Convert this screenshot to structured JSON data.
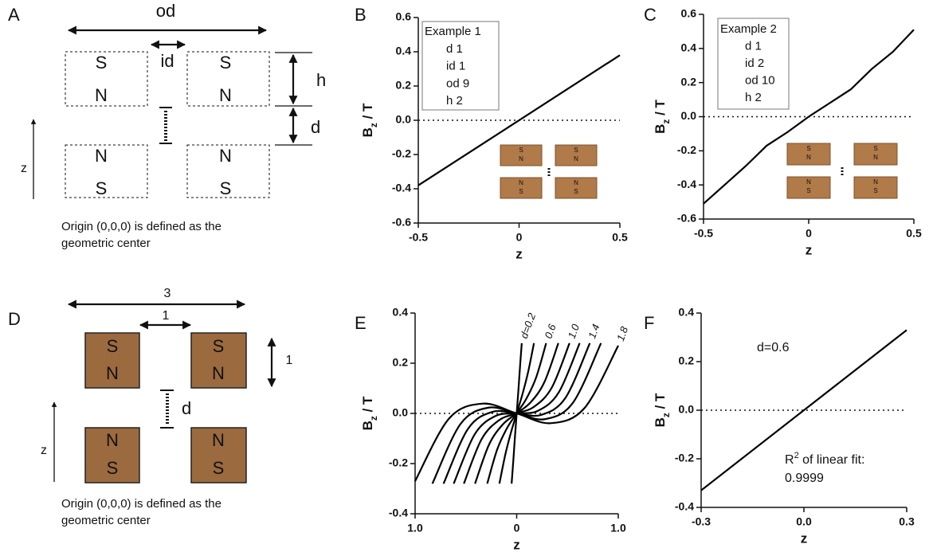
{
  "panel_labels": [
    "A",
    "B",
    "C",
    "D",
    "E",
    "F"
  ],
  "diagram_a": {
    "od": "od",
    "id": "id",
    "h": "h",
    "d": "d",
    "z": "z",
    "magnets": [
      [
        "S",
        "N"
      ],
      [
        "S",
        "N"
      ],
      [
        "N",
        "S"
      ],
      [
        "N",
        "S"
      ]
    ],
    "caption": [
      "Origin (0,0,0) is defined as the",
      "geometric center"
    ]
  },
  "diagram_d": {
    "outer": "3",
    "inner": "1",
    "height": "1",
    "d": "d",
    "z": "z",
    "magnets": [
      [
        "S",
        "N"
      ],
      [
        "S",
        "N"
      ],
      [
        "N",
        "S"
      ],
      [
        "N",
        "S"
      ]
    ],
    "caption": [
      "Origin (0,0,0) is defined as the",
      "geometric center"
    ]
  },
  "chart_data": [
    {
      "type": "line",
      "xlabel": "z",
      "ylabel": [
        "B",
        "z",
        " / T"
      ],
      "x": [
        -0.5,
        0.5
      ],
      "series": [
        {
          "color": "#000000",
          "values": [
            -0.38,
            0.38
          ]
        }
      ],
      "xlim": [
        -0.5,
        0.5
      ],
      "xticks": [
        -0.5,
        0,
        0.5
      ],
      "ylim": [
        -0.6,
        0.6
      ],
      "yticks": [
        -0.6,
        -0.4,
        -0.2,
        {
          "value": 0,
          "label": "0.0"
        },
        0.2,
        0.4,
        0.6
      ],
      "zero_line": true,
      "annotation_box": [
        "Example 1",
        "d 1",
        "id 1",
        "od 9",
        "h 2"
      ],
      "inset_magnets": [
        [
          "S",
          "N"
        ],
        [
          "S",
          "N"
        ],
        [
          "N",
          "S"
        ],
        [
          "N",
          "S"
        ]
      ]
    },
    {
      "type": "line",
      "xlabel": "z",
      "ylabel": [
        "B",
        "z",
        " / T"
      ],
      "x": [
        -0.5,
        -0.4,
        -0.3,
        -0.2,
        -0.1,
        0,
        0.1,
        0.2,
        0.3,
        0.4,
        0.5
      ],
      "series": [
        {
          "color": "#000000",
          "values": [
            -0.51,
            -0.4,
            -0.29,
            -0.17,
            -0.09,
            0,
            0.08,
            0.16,
            0.28,
            0.38,
            0.51
          ]
        }
      ],
      "xlim": [
        -0.5,
        0.5
      ],
      "xticks": [
        -0.5,
        0,
        0.5
      ],
      "ylim": [
        -0.6,
        0.6
      ],
      "yticks": [
        -0.6,
        -0.4,
        -0.2,
        {
          "value": 0,
          "label": "0.0"
        },
        0.2,
        0.4,
        0.6
      ],
      "zero_line": true,
      "annotation_box": [
        "Example 2",
        "d 1",
        "id 2",
        "od 10",
        "h 2"
      ],
      "inset_magnets": [
        [
          "S",
          "N"
        ],
        [
          "S",
          "N"
        ],
        [
          "N",
          "S"
        ],
        [
          "N",
          "S"
        ]
      ]
    },
    {
      "type": "line",
      "xlabel": "z",
      "ylabel": [
        "B",
        "z",
        " / T"
      ],
      "smooth": true,
      "series": [
        {
          "name": "d=0.2",
          "color": "#000000",
          "x": [
            -0.05,
            -0.033,
            -0.017,
            0,
            0.017,
            0.033,
            0.05
          ],
          "values": [
            -0.28,
            -0.187,
            -0.093,
            0,
            0.093,
            0.187,
            0.28
          ]
        },
        {
          "color": "#000000",
          "x": [
            -0.17,
            -0.113,
            -0.057,
            0,
            0.057,
            0.113,
            0.17
          ],
          "values": [
            -0.28,
            -0.166,
            -0.077,
            0,
            0.077,
            0.166,
            0.28
          ]
        },
        {
          "name": "0.6",
          "color": "#000000",
          "x": [
            -0.29,
            -0.193,
            -0.097,
            0,
            0.097,
            0.193,
            0.29
          ],
          "values": [
            -0.28,
            -0.145,
            -0.06,
            0,
            0.06,
            0.145,
            0.28
          ]
        },
        {
          "color": "#000000",
          "x": [
            -0.41,
            -0.273,
            -0.137,
            0,
            0.137,
            0.273,
            0.41
          ],
          "values": [
            -0.28,
            -0.125,
            -0.044,
            0,
            0.044,
            0.125,
            0.28
          ]
        },
        {
          "name": "1.0",
          "color": "#000000",
          "x": [
            -0.52,
            -0.347,
            -0.173,
            0,
            0.173,
            0.347,
            0.52
          ],
          "values": [
            -0.28,
            -0.104,
            -0.027,
            0,
            0.027,
            0.104,
            0.28
          ]
        },
        {
          "color": "#000000",
          "x": [
            -0.62,
            -0.413,
            -0.207,
            0,
            0.207,
            0.413,
            0.62
          ],
          "values": [
            -0.28,
            -0.083,
            -0.01,
            0,
            0.01,
            0.083,
            0.28
          ]
        },
        {
          "name": "1.4",
          "color": "#000000",
          "x": [
            -0.72,
            -0.48,
            -0.24,
            0,
            0.24,
            0.48,
            0.72
          ],
          "values": [
            -0.28,
            -0.062,
            0.006,
            0,
            -0.006,
            0.062,
            0.28
          ]
        },
        {
          "color": "#000000",
          "x": [
            -0.83,
            -0.553,
            -0.277,
            0,
            0.277,
            0.553,
            0.83
          ],
          "values": [
            -0.28,
            -0.042,
            0.023,
            0,
            -0.023,
            0.042,
            0.28
          ]
        },
        {
          "name": "1.8",
          "color": "#000000",
          "x": [
            -1,
            -0.667,
            -0.333,
            0,
            0.333,
            0.667,
            1
          ],
          "values": [
            -0.27,
            -0.021,
            0.039,
            0,
            -0.039,
            0.021,
            0.27
          ]
        }
      ],
      "xlim": [
        -1,
        1
      ],
      "xticks": [
        {
          "value": -1,
          "label": "1.0"
        },
        0,
        {
          "value": 1,
          "label": "1.0"
        }
      ],
      "ylim": [
        -0.4,
        0.4
      ],
      "yticks": [
        -0.4,
        -0.2,
        {
          "value": 0,
          "label": "0.0"
        },
        0.2,
        0.4
      ],
      "zero_line": true
    },
    {
      "type": "line",
      "xlabel": "z",
      "ylabel": [
        "B",
        "z",
        " / T"
      ],
      "x": [
        -0.3,
        0.3
      ],
      "series": [
        {
          "color": "#000000",
          "values": [
            -0.33,
            0.33
          ]
        }
      ],
      "xlim": [
        -0.3,
        0.3
      ],
      "xticks": [
        -0.3,
        {
          "value": 0,
          "label": "0.0"
        },
        0.3
      ],
      "ylim": [
        -0.4,
        0.4
      ],
      "yticks": [
        -0.4,
        -0.2,
        {
          "value": 0,
          "label": "0.0"
        },
        0.2,
        0.4
      ],
      "zero_line": true,
      "annotations": {
        "note": "d=0.6",
        "fit": [
          "R",
          "2",
          " of linear fit:"
        ],
        "fit_value": "0.9999"
      }
    }
  ]
}
